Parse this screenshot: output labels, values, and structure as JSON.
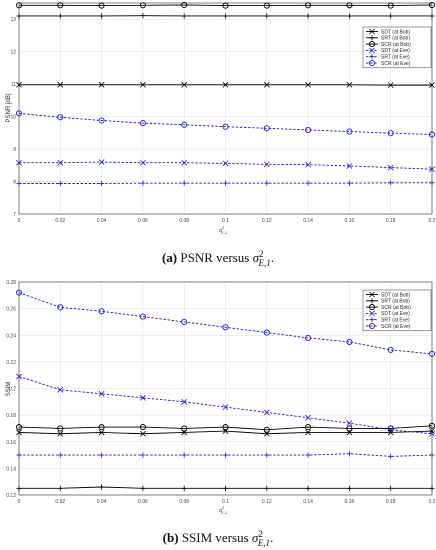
{
  "chart_data": [
    {
      "type": "line",
      "ylabel": "PSNR [dB]",
      "xlabel_main": "σ",
      "xlabel_sup": "2",
      "xlabel_sub": "E,1",
      "xlim": [
        0,
        0.2
      ],
      "ylim": [
        7,
        13.5
      ],
      "x": [
        0,
        0.02,
        0.04,
        0.06,
        0.08,
        0.1,
        0.12,
        0.14,
        0.16,
        0.18,
        0.2
      ],
      "xticks": [
        "0",
        "0.02",
        "0.04",
        "0.06",
        "0.08",
        "0.1",
        "0.12",
        "0.14",
        "0.16",
        "0.18",
        "0.2"
      ],
      "yticks": [
        {
          "v": 7,
          "t": "7"
        },
        {
          "v": 8,
          "t": "8"
        },
        {
          "v": 9,
          "t": "9"
        },
        {
          "v": 10,
          "t": "10"
        },
        {
          "v": 11,
          "t": "11"
        },
        {
          "v": 12,
          "t": "12"
        },
        {
          "v": 13,
          "t": "13"
        }
      ],
      "grid": true,
      "legend_position": "top-right",
      "series": [
        {
          "name": "SDT (at Bob)",
          "color": "#000000",
          "dash": false,
          "marker": "x",
          "values": [
            10.98,
            10.98,
            10.98,
            10.98,
            10.98,
            10.98,
            10.98,
            10.98,
            10.98,
            10.97,
            10.97
          ]
        },
        {
          "name": "SRT (at Bob)",
          "color": "#000000",
          "dash": false,
          "marker": "+",
          "values": [
            13.1,
            13.1,
            13.1,
            13.11,
            13.1,
            13.1,
            13.1,
            13.1,
            13.1,
            13.1,
            13.1
          ]
        },
        {
          "name": "SCR (at Bob)",
          "color": "#000000",
          "dash": false,
          "marker": "o",
          "values": [
            13.43,
            13.43,
            13.42,
            13.43,
            13.44,
            13.42,
            13.42,
            13.43,
            13.43,
            13.42,
            13.44
          ]
        },
        {
          "name": "SDT (at Eve)",
          "color": "#1f1fd6",
          "dash": true,
          "marker": "x",
          "values": [
            8.58,
            8.58,
            8.6,
            8.58,
            8.58,
            8.56,
            8.53,
            8.52,
            8.48,
            8.43,
            8.38
          ]
        },
        {
          "name": "SRT (at Eve)",
          "color": "#1f1fd6",
          "dash": true,
          "marker": "+",
          "values": [
            7.94,
            7.94,
            7.94,
            7.95,
            7.95,
            7.95,
            7.95,
            7.95,
            7.95,
            7.96,
            7.96
          ]
        },
        {
          "name": "SCR (at Eve)",
          "color": "#1f1fd6",
          "dash": true,
          "marker": "o",
          "values": [
            10.1,
            9.98,
            9.88,
            9.8,
            9.75,
            9.69,
            9.64,
            9.59,
            9.54,
            9.49,
            9.45
          ]
        }
      ]
    },
    {
      "type": "line",
      "ylabel": "SSIM",
      "xlabel_main": "σ",
      "xlabel_sup": "2",
      "xlabel_sub": "E,1",
      "xlim": [
        0,
        0.2
      ],
      "ylim": [
        0.12,
        0.28
      ],
      "x": [
        0,
        0.02,
        0.04,
        0.06,
        0.08,
        0.1,
        0.12,
        0.14,
        0.16,
        0.18,
        0.2
      ],
      "xticks": [
        "0",
        "0.02",
        "0.04",
        "0.06",
        "0.08",
        "0.1",
        "0.12",
        "0.14",
        "0.16",
        "0.18",
        "0.2"
      ],
      "yticks": [
        {
          "v": 0.12,
          "t": "0.12"
        },
        {
          "v": 0.14,
          "t": "0.14"
        },
        {
          "v": 0.16,
          "t": "0.16"
        },
        {
          "v": 0.18,
          "t": "0.18"
        },
        {
          "v": 0.2,
          "t": "0.2"
        },
        {
          "v": 0.22,
          "t": "0.22"
        },
        {
          "v": 0.24,
          "t": "0.24"
        },
        {
          "v": 0.26,
          "t": "0.26"
        },
        {
          "v": 0.28,
          "t": "0.28"
        }
      ],
      "grid": true,
      "legend_position": "top-right",
      "series": [
        {
          "name": "SDT (at Bob)",
          "color": "#000000",
          "dash": false,
          "marker": "x",
          "values": [
            0.167,
            0.166,
            0.167,
            0.166,
            0.167,
            0.168,
            0.166,
            0.167,
            0.167,
            0.167,
            0.168
          ]
        },
        {
          "name": "SRT (at Bob)",
          "color": "#000000",
          "dash": false,
          "marker": "+",
          "values": [
            0.125,
            0.125,
            0.126,
            0.125,
            0.125,
            0.125,
            0.125,
            0.125,
            0.125,
            0.125,
            0.125
          ]
        },
        {
          "name": "SCR (at Bob)",
          "color": "#000000",
          "dash": false,
          "marker": "o",
          "values": [
            0.171,
            0.17,
            0.171,
            0.171,
            0.17,
            0.171,
            0.169,
            0.171,
            0.17,
            0.17,
            0.172
          ]
        },
        {
          "name": "SDT (at Eve)",
          "color": "#1f1fd6",
          "dash": true,
          "marker": "x",
          "values": [
            0.209,
            0.199,
            0.196,
            0.193,
            0.19,
            0.186,
            0.182,
            0.178,
            0.174,
            0.169,
            0.166
          ]
        },
        {
          "name": "SRT (at Eve)",
          "color": "#1f1fd6",
          "dash": true,
          "marker": "+",
          "values": [
            0.15,
            0.15,
            0.15,
            0.15,
            0.15,
            0.15,
            0.15,
            0.15,
            0.151,
            0.149,
            0.15
          ]
        },
        {
          "name": "SCR (at Eve)",
          "color": "#1f1fd6",
          "dash": true,
          "marker": "o",
          "values": [
            0.272,
            0.261,
            0.258,
            0.254,
            0.25,
            0.246,
            0.242,
            0.238,
            0.235,
            0.229,
            0.226
          ]
        }
      ]
    }
  ],
  "captions": [
    {
      "letter": "(a)",
      "text": " PSNR versus ",
      "math": "σ",
      "sup": "2",
      "sub": "E,1",
      "end": "."
    },
    {
      "letter": "(b)",
      "text": " SSIM versus ",
      "math": "σ",
      "sup": "2",
      "sub": "E,1",
      "end": "."
    }
  ]
}
